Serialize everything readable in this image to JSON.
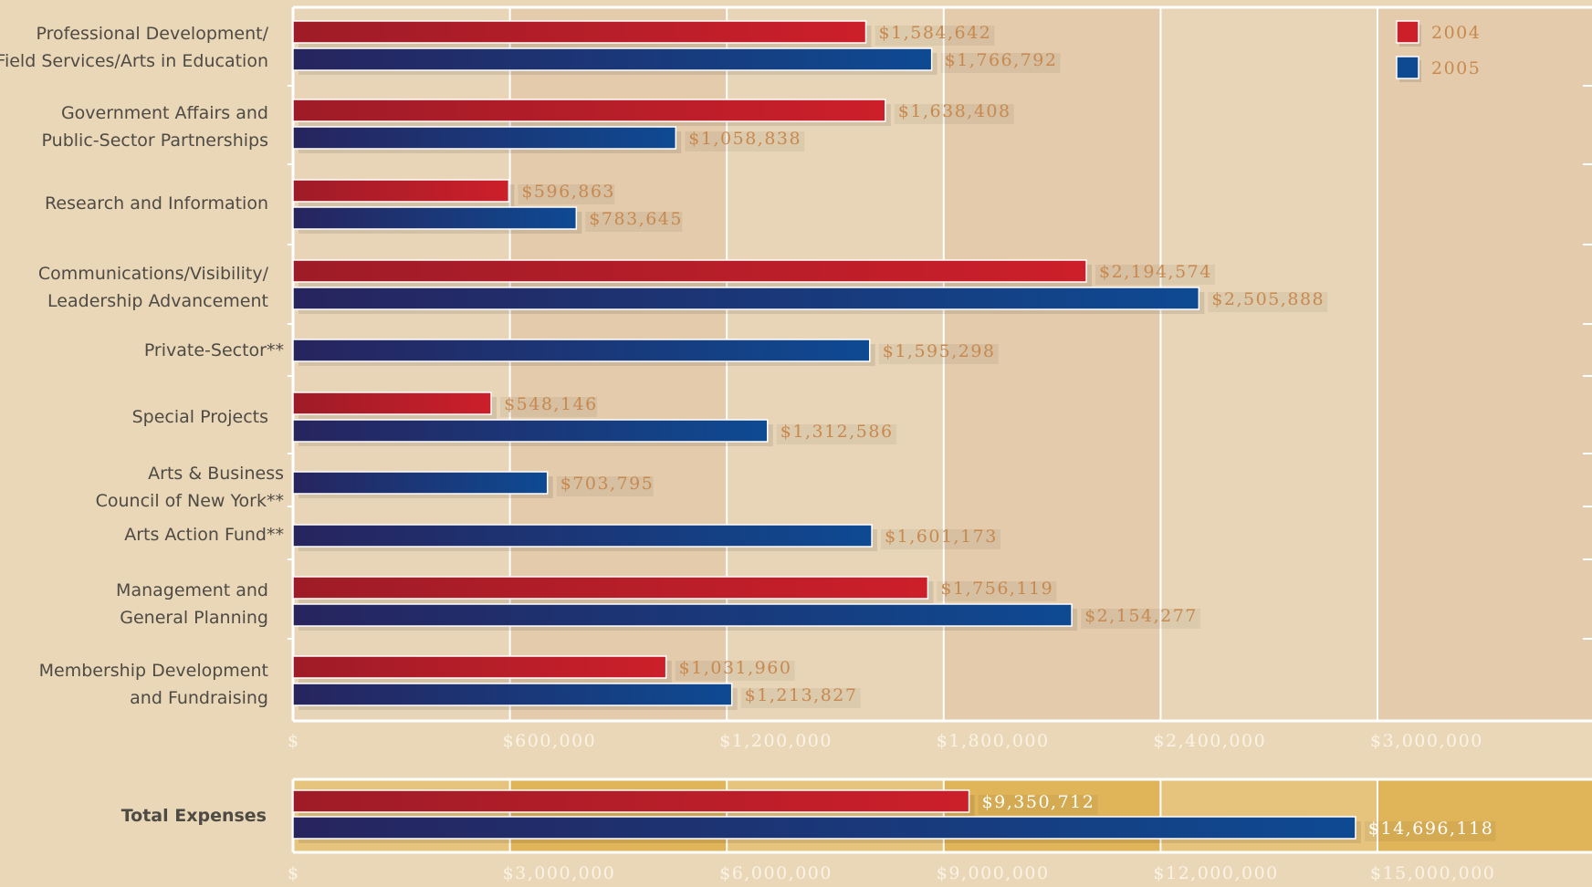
{
  "chart_data": [
    {
      "type": "bar",
      "orientation": "horizontal",
      "categories": [
        [
          "Professional Development/",
          "Field Services/Arts in Education"
        ],
        [
          "Government Affairs and",
          "Public-Sector Partnerships"
        ],
        [
          "Research and Information"
        ],
        [
          "Communications/Visibility/",
          "Leadership Advancement"
        ],
        [
          "Private-Sector**"
        ],
        [
          "Special Projects"
        ],
        [
          "Arts & Business",
          "Council of New York**"
        ],
        [
          "Arts Action Fund**"
        ],
        [
          "Management and",
          "General Planning"
        ],
        [
          "Membership Development",
          "and Fundraising"
        ]
      ],
      "series": [
        {
          "name": "2004",
          "color": "#cc1f2a",
          "values": [
            1584642,
            1638408,
            596863,
            2194574,
            null,
            548146,
            null,
            null,
            1756119,
            1031960
          ],
          "labels": [
            "$1,584,642",
            "$1,638,408",
            "$596,863",
            "$2,194,574",
            null,
            "$548,146",
            null,
            null,
            "$1,756,119",
            "$1,031,960"
          ]
        },
        {
          "name": "2005",
          "color": "#0e4a92",
          "values": [
            1766792,
            1058838,
            783645,
            2505888,
            1595298,
            1312586,
            703795,
            1601173,
            2154277,
            1213827
          ],
          "labels": [
            "$1,766,792",
            "$1,058,838",
            "$783,645",
            "$2,505,888",
            "$1,595,298",
            "$1,312,586",
            "$703,795",
            "$1,601,173",
            "$2,154,277",
            "$1,213,827"
          ]
        }
      ],
      "xlim": [
        0,
        3600000
      ],
      "xticks": [
        0,
        600000,
        1200000,
        1800000,
        2400000,
        3000000
      ],
      "xtick_labels": [
        "$",
        "$600,000",
        "$1,200,000",
        "$1,800,000",
        "$2,400,000",
        "$3,000,000"
      ],
      "grid": true,
      "legend": "top-right"
    },
    {
      "type": "bar",
      "orientation": "horizontal",
      "categories": [
        "Total Expenses"
      ],
      "series": [
        {
          "name": "2004",
          "color": "#cc1f2a",
          "values": [
            9350712
          ],
          "labels": [
            "$9,350,712"
          ]
        },
        {
          "name": "2005",
          "color": "#0e4a92",
          "values": [
            14696118
          ],
          "labels": [
            "$14,696,118"
          ]
        }
      ],
      "xlim": [
        0,
        18000000
      ],
      "xticks": [
        0,
        3000000,
        6000000,
        9000000,
        12000000,
        15000000
      ],
      "xtick_labels": [
        "$",
        "$3,000,000",
        "$6,000,000",
        "$9,000,000",
        "$12,000,000",
        "$15,000,000"
      ],
      "grid": true
    }
  ],
  "colors": {
    "background": "#e9d7b8",
    "plot_band_light": "#e8d5b7",
    "plot_band_dark": "#e3cbab",
    "total_band_light": "#e6c47e",
    "total_band_dark": "#e0b458",
    "value_text": "#c8894f"
  }
}
